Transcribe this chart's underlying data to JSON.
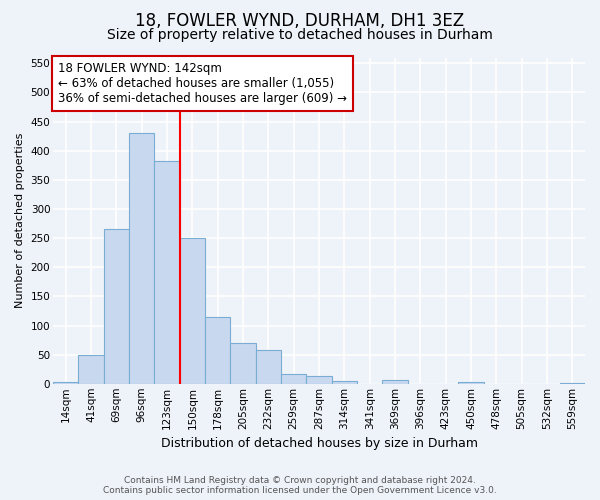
{
  "title1": "18, FOWLER WYND, DURHAM, DH1 3EZ",
  "title2": "Size of property relative to detached houses in Durham",
  "xlabel": "Distribution of detached houses by size in Durham",
  "ylabel": "Number of detached properties",
  "categories": [
    "14sqm",
    "41sqm",
    "69sqm",
    "96sqm",
    "123sqm",
    "150sqm",
    "178sqm",
    "205sqm",
    "232sqm",
    "259sqm",
    "287sqm",
    "314sqm",
    "341sqm",
    "369sqm",
    "396sqm",
    "423sqm",
    "450sqm",
    "478sqm",
    "505sqm",
    "532sqm",
    "559sqm"
  ],
  "values": [
    3,
    50,
    265,
    430,
    383,
    250,
    115,
    70,
    58,
    17,
    13,
    5,
    0,
    7,
    0,
    0,
    3,
    0,
    0,
    0,
    2
  ],
  "bar_color": "#c8d9ef",
  "bar_edge_color": "#7aadd4",
  "red_line_x": 4.5,
  "annotation_line1": "18 FOWLER WYND: 142sqm",
  "annotation_line2": "← 63% of detached houses are smaller (1,055)",
  "annotation_line3": "36% of semi-detached houses are larger (609) →",
  "annotation_box_color": "#ffffff",
  "annotation_box_edge": "#cc0000",
  "footer1": "Contains HM Land Registry data © Crown copyright and database right 2024.",
  "footer2": "Contains public sector information licensed under the Open Government Licence v3.0.",
  "ylim": [
    0,
    560
  ],
  "yticks": [
    0,
    50,
    100,
    150,
    200,
    250,
    300,
    350,
    400,
    450,
    500,
    550
  ],
  "bg_color": "#eef2f9",
  "grid_color": "#ffffff",
  "title1_fontsize": 12,
  "title2_fontsize": 10,
  "ylabel_fontsize": 8,
  "xlabel_fontsize": 9,
  "tick_fontsize": 7.5,
  "footer_fontsize": 6.5
}
